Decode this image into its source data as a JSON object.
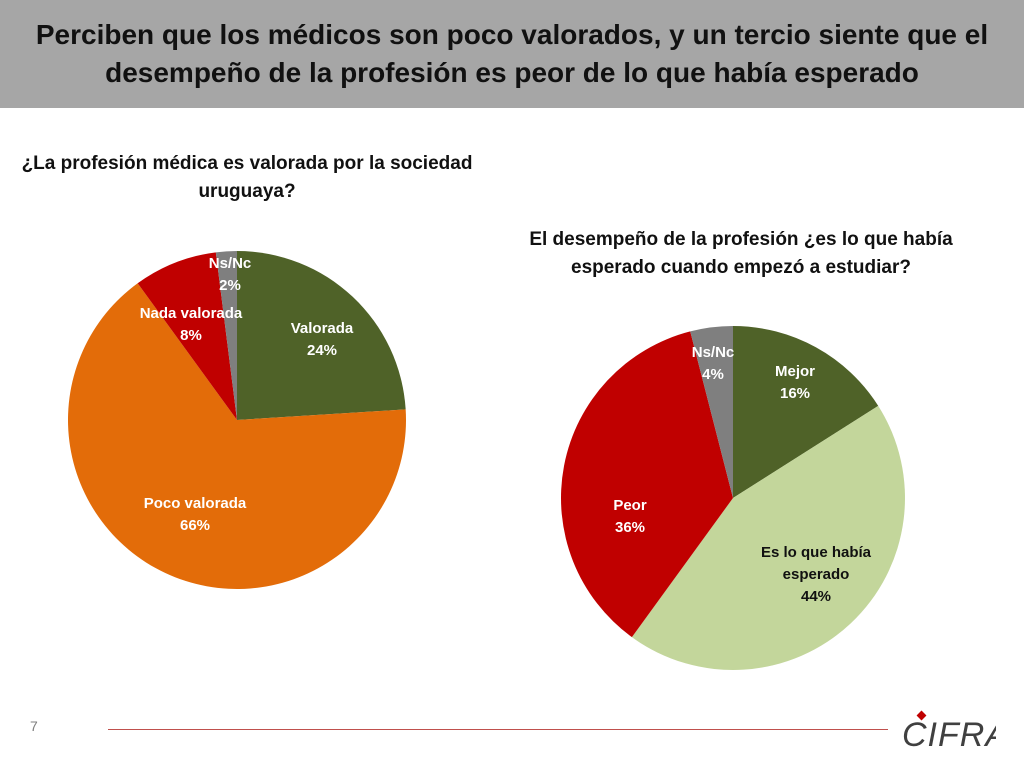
{
  "header": {
    "title": "Perciben que los médicos son poco valorados, y un tercio siente que el desempeño de la profesión es peor de lo que había esperado"
  },
  "page_number": "7",
  "logo": {
    "text": "CIFRA",
    "accent_color": "#c00000"
  },
  "chart_data": [
    {
      "type": "pie",
      "title": "¿La profesión médica es valorada por la sociedad uruguaya?",
      "slices": [
        {
          "label": "Valorada",
          "value": 24,
          "value_label": "24%",
          "color": "#4f6228",
          "text_color": "#ffffff"
        },
        {
          "label": "Poco valorada",
          "value": 66,
          "value_label": "66%",
          "color": "#e36c09",
          "text_color": "#ffffff"
        },
        {
          "label": "Nada valorada",
          "value": 8,
          "value_label": "8%",
          "color": "#c00000",
          "text_color": "#ffffff"
        },
        {
          "label": "Ns/Nc",
          "value": 2,
          "value_label": "2%",
          "color": "#7f7f7f",
          "text_color": "#ffffff"
        }
      ]
    },
    {
      "type": "pie",
      "title": "El desempeño de la profesión ¿es lo que había esperado cuando empezó a estudiar?",
      "slices": [
        {
          "label": "Mejor",
          "value": 16,
          "value_label": "16%",
          "color": "#4f6228",
          "text_color": "#ffffff"
        },
        {
          "label": "Es lo que había esperado",
          "value": 44,
          "value_label": "44%",
          "color": "#c3d69b",
          "text_color": "#111111"
        },
        {
          "label": "Peor",
          "value": 36,
          "value_label": "36%",
          "color": "#c00000",
          "text_color": "#ffffff"
        },
        {
          "label": "Ns/Nc",
          "value": 4,
          "value_label": "4%",
          "color": "#7f7f7f",
          "text_color": "#ffffff"
        }
      ]
    }
  ]
}
